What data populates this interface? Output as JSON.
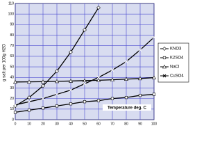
{
  "chart_data": {
    "type": "line",
    "y_label": "g salt per 100g H2O",
    "x_label": "Temperature deg. C",
    "x": [
      0,
      10,
      20,
      30,
      40,
      50,
      60,
      70,
      80,
      90,
      100
    ],
    "series": [
      {
        "name": "KNO3",
        "color": "#000000",
        "marker": "diamond",
        "values": [
          13,
          21,
          32,
          46,
          64,
          85,
          106,
          null,
          null,
          null,
          null
        ]
      },
      {
        "name": "K2SO4",
        "color": "#000000",
        "marker": "square",
        "values": [
          7,
          9,
          11,
          13,
          15,
          17,
          18,
          20,
          21,
          23,
          24
        ]
      },
      {
        "name": "NaCl",
        "color": "#000000",
        "marker": "triangle",
        "values": [
          35.7,
          35.8,
          36,
          36.3,
          36.6,
          37,
          37.3,
          37.8,
          38.4,
          39,
          39.8
        ]
      },
      {
        "name": "CuSO4",
        "color": "#000000",
        "marker": "cross",
        "values": [
          14,
          17,
          20,
          24,
          28,
          34,
          40,
          47,
          55,
          66,
          78
        ]
      }
    ],
    "xlim": [
      0,
      100
    ],
    "xticks": [
      0,
      10,
      20,
      30,
      40,
      50,
      60,
      70,
      80,
      90,
      100
    ],
    "ylim": [
      0,
      110
    ],
    "yticks": [
      0,
      10,
      20,
      30,
      40,
      50,
      60,
      70,
      80,
      90,
      100,
      110
    ],
    "grid": true,
    "legend": "right"
  }
}
